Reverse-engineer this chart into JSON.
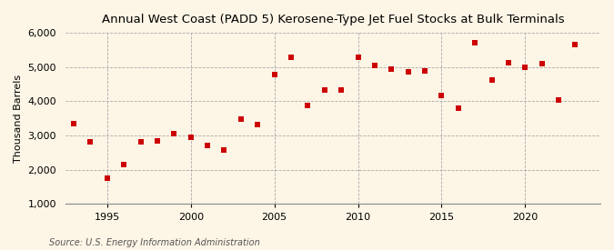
{
  "title": "Annual West Coast (PADD 5) Kerosene-Type Jet Fuel Stocks at Bulk Terminals",
  "ylabel": "Thousand Barrels",
  "source": "Source: U.S. Energy Information Administration",
  "background_color": "#fdf5e6",
  "dot_color": "#cc0000",
  "years": [
    1993,
    1994,
    1995,
    1996,
    1997,
    1998,
    1999,
    2000,
    2001,
    2002,
    2003,
    2004,
    2005,
    2006,
    2007,
    2008,
    2009,
    2010,
    2011,
    2012,
    2013,
    2014,
    2015,
    2016,
    2017,
    2018,
    2019,
    2020,
    2021,
    2022,
    2023
  ],
  "values": [
    3360,
    2820,
    1760,
    2150,
    2820,
    2840,
    3060,
    2960,
    2720,
    2590,
    3480,
    3330,
    4780,
    5290,
    3870,
    4340,
    4340,
    5290,
    5040,
    4930,
    4870,
    4880,
    4170,
    3800,
    5700,
    4620,
    5120,
    4990,
    5100,
    4050,
    5670
  ],
  "ylim": [
    1000,
    6000
  ],
  "yticks": [
    1000,
    2000,
    3000,
    4000,
    5000,
    6000
  ],
  "xticks": [
    1995,
    2000,
    2005,
    2010,
    2015,
    2020
  ],
  "xlim": [
    1992.5,
    2024.5
  ]
}
